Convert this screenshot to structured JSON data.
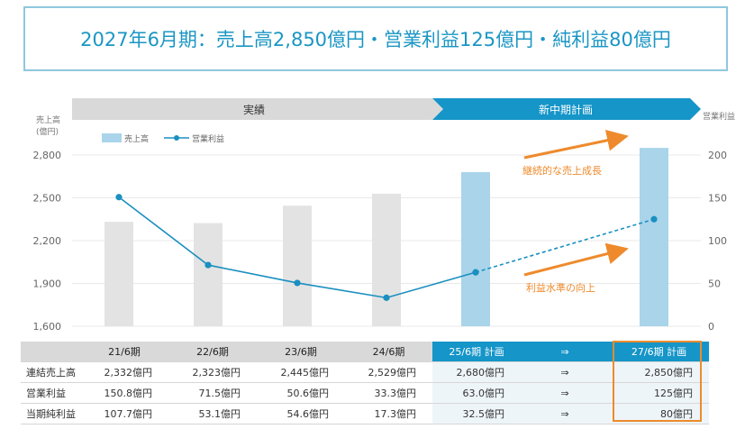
{
  "headline": "2027年6月期：売上高2,850億円・営業利益125億円・純利益80億円",
  "phases": {
    "actual": "実績",
    "plan": "新中期計画"
  },
  "axes": {
    "left_label_1": "売上高",
    "left_label_2": "(億円)",
    "right_label": "営業利益"
  },
  "legend": {
    "sales": "売上高",
    "op": "営業利益"
  },
  "annotations": {
    "growth": "継続的な売上成長",
    "profit": "利益水準の向上"
  },
  "colors": {
    "actual_bar": "#e3e3e3",
    "plan_bar": "#a9d4ea",
    "line": "#1a8fc0",
    "arrow": "#ee8a2c",
    "header": "#1595c8"
  },
  "chart_data": {
    "type": "bar",
    "categories": [
      "21/6期",
      "22/6期",
      "23/6期",
      "24/6期",
      "25/6期",
      "27/6期"
    ],
    "series": [
      {
        "name": "売上高",
        "type": "bar",
        "axis": "left",
        "values": [
          2332,
          2323,
          2445,
          2529,
          2680,
          2850
        ]
      },
      {
        "name": "営業利益",
        "type": "line",
        "axis": "right",
        "values": [
          150.8,
          71.5,
          50.6,
          33.3,
          63.0,
          125
        ],
        "dashed_last_segment": true
      }
    ],
    "y_left": {
      "lim": [
        1600,
        2800
      ],
      "ticks": [
        "1,600",
        "1,900",
        "2,200",
        "2,500",
        "2,800"
      ]
    },
    "y_right": {
      "lim": [
        0,
        200
      ],
      "ticks": [
        "0",
        "50",
        "100",
        "150",
        "200"
      ]
    },
    "grid": true,
    "legend_position": "top-left"
  },
  "table": {
    "headers": [
      "",
      "21/6期",
      "22/6期",
      "23/6期",
      "24/6期",
      "25/6期 計画",
      "⇒",
      "27/6期 計画"
    ],
    "rows": [
      {
        "label": "連結売上高",
        "cells": [
          "2,332億円",
          "2,323億円",
          "2,445億円",
          "2,529億円",
          "2,680億円",
          "⇒",
          "2,850億円"
        ]
      },
      {
        "label": "営業利益",
        "cells": [
          "150.8億円",
          "71.5億円",
          "50.6億円",
          "33.3億円",
          "63.0億円",
          "⇒",
          "125億円"
        ]
      },
      {
        "label": "当期純利益",
        "cells": [
          "107.7億円",
          "53.1億円",
          "54.6億円",
          "17.3億円",
          "32.5億円",
          "⇒",
          "80億円"
        ]
      }
    ]
  }
}
